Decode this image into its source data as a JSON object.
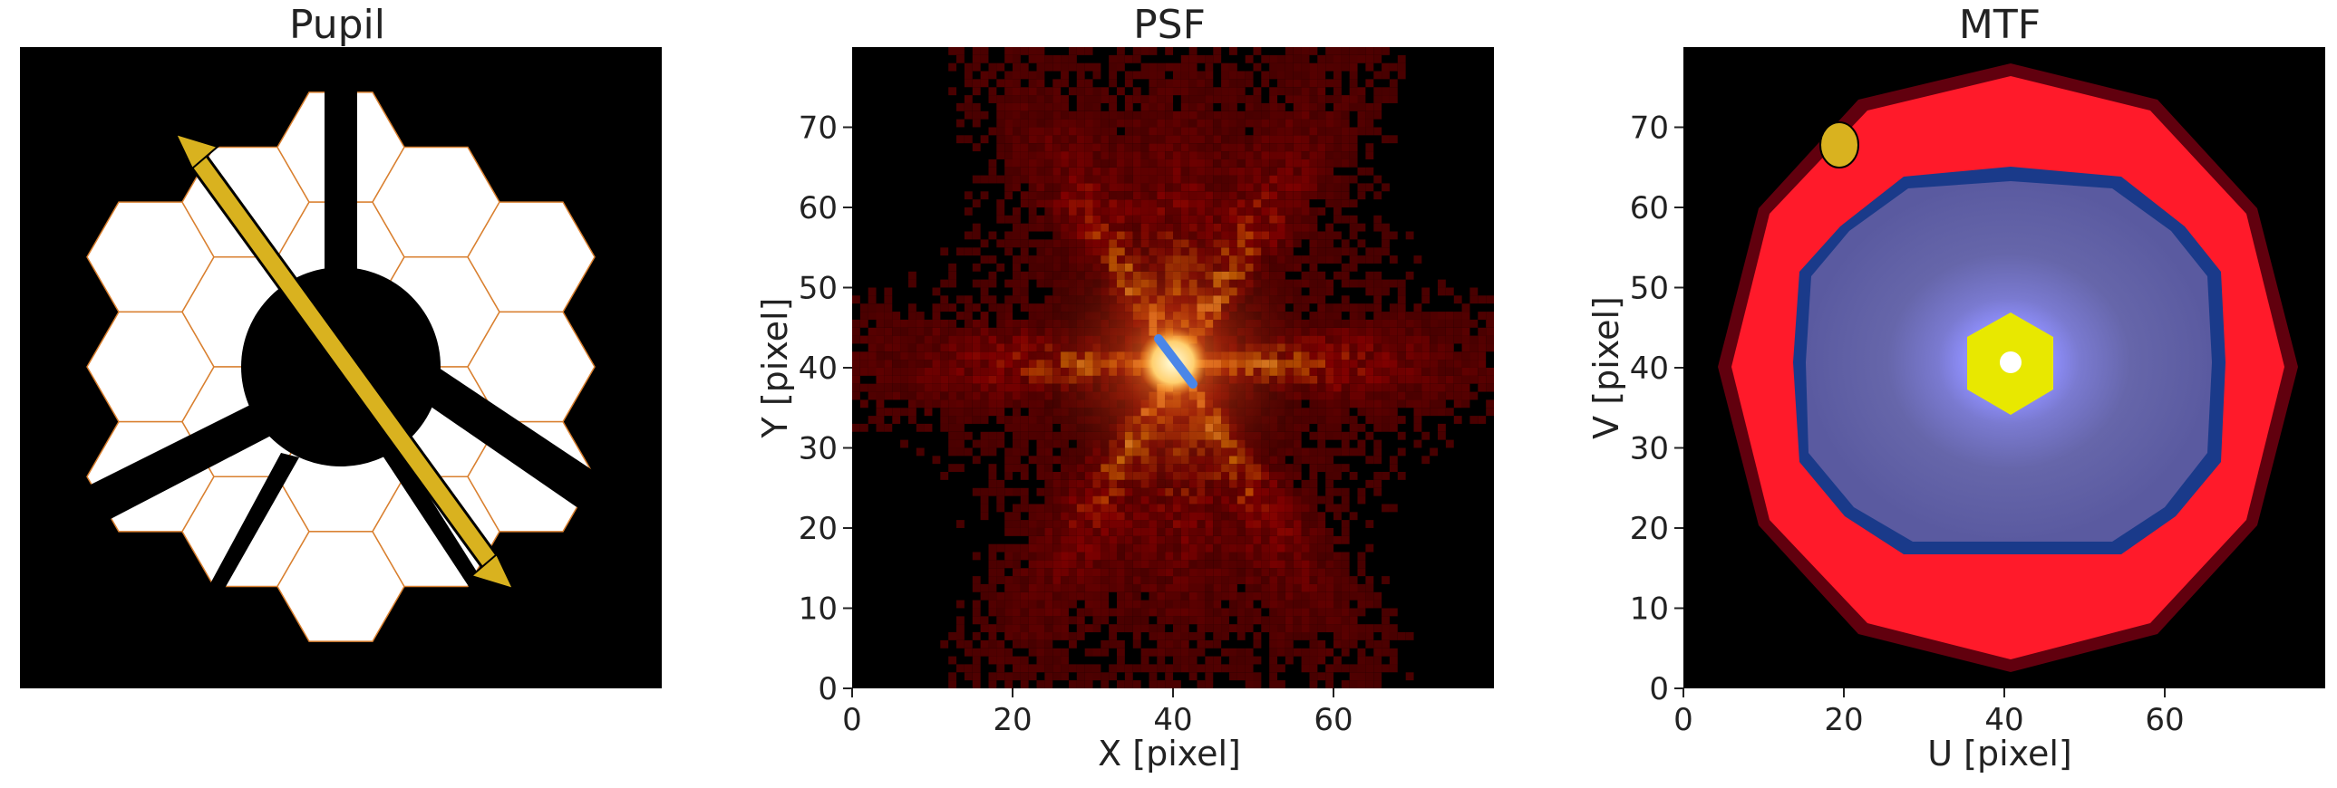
{
  "panels": [
    {
      "id": "pupil",
      "title": "Pupil"
    },
    {
      "id": "psf",
      "title": "PSF",
      "xlabel": "X [pixel]",
      "ylabel": "Y [pixel]",
      "xticks": [
        "0",
        "20",
        "40",
        "60"
      ],
      "yticks": [
        "0",
        "10",
        "20",
        "30",
        "40",
        "50",
        "60",
        "70"
      ]
    },
    {
      "id": "mtf",
      "title": "MTF",
      "xlabel": "U [pixel]",
      "ylabel": "V [pixel]",
      "xticks": [
        "0",
        "20",
        "40",
        "60"
      ],
      "yticks": [
        "0",
        "10",
        "20",
        "30",
        "40",
        "50",
        "60",
        "70"
      ]
    }
  ],
  "colors": {
    "arrow": "#d9b21f",
    "psf_marker": "#4a86e8",
    "mtf_marker": "#d9b21f",
    "segment_edge": "#d98030"
  }
}
